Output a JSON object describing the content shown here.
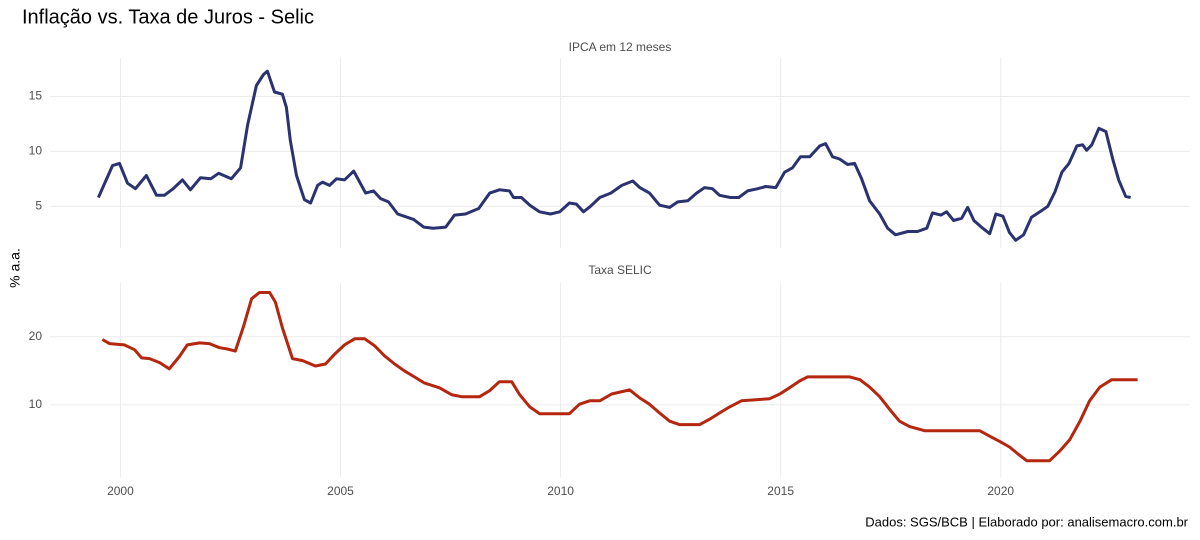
{
  "title": "Inflação vs. Taxa de Juros - Selic",
  "ylabel": "% a.a.",
  "caption": "Dados: SGS/BCB | Elaborado por: analisemacro.com.br",
  "chart_data": [
    {
      "type": "line",
      "title": "IPCA em 12 meses",
      "color": "#2b3270",
      "grid": true,
      "xlim": [
        1998.4,
        2024.3
      ],
      "ylim": [
        1.2,
        18.5
      ],
      "xticks": [
        2000,
        2005,
        2010,
        2015,
        2020
      ],
      "yticks": [
        5,
        10,
        15
      ],
      "x": [
        1999.5,
        1999.82,
        1999.98,
        2000.16,
        2000.34,
        2000.59,
        2000.82,
        2001.0,
        2001.2,
        2001.41,
        2001.59,
        2001.82,
        2002.05,
        2002.23,
        2002.52,
        2002.73,
        2002.89,
        2003.09,
        2003.25,
        2003.34,
        2003.5,
        2003.68,
        2003.77,
        2003.86,
        2004.0,
        2004.18,
        2004.32,
        2004.48,
        2004.59,
        2004.75,
        2004.91,
        2005.09,
        2005.3,
        2005.41,
        2005.57,
        2005.75,
        2005.91,
        2006.09,
        2006.3,
        2006.66,
        2006.89,
        2007.11,
        2007.39,
        2007.59,
        2007.84,
        2008.14,
        2008.39,
        2008.61,
        2008.84,
        2008.93,
        2009.11,
        2009.3,
        2009.52,
        2009.77,
        2009.98,
        2010.2,
        2010.36,
        2010.52,
        2010.68,
        2010.89,
        2011.14,
        2011.39,
        2011.64,
        2011.8,
        2012.02,
        2012.25,
        2012.48,
        2012.66,
        2012.89,
        2013.09,
        2013.27,
        2013.45,
        2013.61,
        2013.86,
        2014.05,
        2014.25,
        2014.48,
        2014.66,
        2014.89,
        2015.09,
        2015.27,
        2015.45,
        2015.66,
        2015.89,
        2016.02,
        2016.18,
        2016.34,
        2016.52,
        2016.68,
        2016.84,
        2017.02,
        2017.25,
        2017.43,
        2017.61,
        2017.89,
        2018.11,
        2018.32,
        2018.45,
        2018.64,
        2018.77,
        2018.93,
        2019.11,
        2019.25,
        2019.39,
        2019.59,
        2019.75,
        2019.89,
        2020.05,
        2020.2,
        2020.34,
        2020.52,
        2020.7,
        2020.89,
        2021.07,
        2021.23,
        2021.39,
        2021.55,
        2021.73,
        2021.86,
        2021.95,
        2022.07,
        2022.23,
        2022.39,
        2022.55,
        2022.68,
        2022.84,
        2022.95
      ],
      "values": [
        5.8,
        8.7,
        8.9,
        7.1,
        6.6,
        7.8,
        6.0,
        6.0,
        6.6,
        7.4,
        6.5,
        7.6,
        7.5,
        8.0,
        7.5,
        8.5,
        12.4,
        16.0,
        17.0,
        17.3,
        15.4,
        15.2,
        14.0,
        11.0,
        7.8,
        5.6,
        5.3,
        6.9,
        7.2,
        6.9,
        7.5,
        7.4,
        8.2,
        7.4,
        6.2,
        6.4,
        5.7,
        5.4,
        4.3,
        3.8,
        3.1,
        3.0,
        3.1,
        4.2,
        4.3,
        4.8,
        6.2,
        6.5,
        6.4,
        5.8,
        5.8,
        5.1,
        4.5,
        4.3,
        4.5,
        5.3,
        5.2,
        4.5,
        5.0,
        5.8,
        6.2,
        6.9,
        7.3,
        6.7,
        6.2,
        5.1,
        4.9,
        5.4,
        5.5,
        6.2,
        6.7,
        6.6,
        6.0,
        5.8,
        5.8,
        6.4,
        6.6,
        6.8,
        6.7,
        8.1,
        8.5,
        9.5,
        9.5,
        10.5,
        10.7,
        9.5,
        9.3,
        8.8,
        8.9,
        7.5,
        5.5,
        4.3,
        3.0,
        2.4,
        2.7,
        2.7,
        3.0,
        4.4,
        4.2,
        4.5,
        3.7,
        3.9,
        4.9,
        3.7,
        3.0,
        2.5,
        4.3,
        4.1,
        2.6,
        1.9,
        2.4,
        4.0,
        4.5,
        5.0,
        6.3,
        8.1,
        8.9,
        10.5,
        10.6,
        10.1,
        10.6,
        12.1,
        11.8,
        9.2,
        7.4,
        5.9,
        5.8
      ]
    },
    {
      "type": "line",
      "title": "Taxa SELIC",
      "color": "#b5260e",
      "grid": true,
      "xlim": [
        1998.4,
        2024.3
      ],
      "ylim": [
        -0.6,
        27.9
      ],
      "xticks": [
        2000,
        2005,
        2010,
        2015,
        2020
      ],
      "yticks": [
        10,
        20
      ],
      "x": [
        1999.59,
        1999.75,
        2000.09,
        2000.32,
        2000.48,
        2000.66,
        2000.89,
        2001.11,
        2001.34,
        2001.52,
        2001.8,
        2002.02,
        2002.25,
        2002.43,
        2002.61,
        2002.8,
        2002.98,
        2003.16,
        2003.39,
        2003.52,
        2003.68,
        2003.91,
        2004.14,
        2004.43,
        2004.66,
        2004.86,
        2005.09,
        2005.32,
        2005.55,
        2005.77,
        2006.0,
        2006.23,
        2006.45,
        2006.68,
        2006.91,
        2007.25,
        2007.52,
        2007.75,
        2008.16,
        2008.39,
        2008.61,
        2008.89,
        2009.07,
        2009.3,
        2009.52,
        2010.2,
        2010.43,
        2010.66,
        2010.89,
        2011.16,
        2011.57,
        2011.8,
        2012.02,
        2012.25,
        2012.48,
        2012.7,
        2013.16,
        2013.39,
        2013.61,
        2013.84,
        2014.11,
        2014.75,
        2014.98,
        2015.2,
        2015.43,
        2015.61,
        2016.57,
        2016.8,
        2017.02,
        2017.25,
        2017.48,
        2017.7,
        2017.93,
        2018.27,
        2019.52,
        2019.75,
        2019.98,
        2020.2,
        2020.39,
        2020.59,
        2021.11,
        2021.34,
        2021.57,
        2021.8,
        2022.02,
        2022.25,
        2022.52,
        2023.11
      ],
      "values": [
        19.6,
        19.0,
        18.8,
        18.1,
        16.9,
        16.8,
        16.2,
        15.3,
        17.1,
        18.8,
        19.1,
        19.0,
        18.4,
        18.2,
        17.9,
        21.6,
        25.6,
        26.5,
        26.5,
        25.1,
        21.3,
        16.8,
        16.5,
        15.7,
        16.0,
        17.4,
        18.8,
        19.7,
        19.7,
        18.7,
        17.2,
        16.0,
        15.0,
        14.1,
        13.2,
        12.5,
        11.5,
        11.2,
        11.2,
        12.1,
        13.4,
        13.4,
        11.5,
        9.7,
        8.7,
        8.7,
        10.1,
        10.6,
        10.6,
        11.6,
        12.2,
        11.0,
        10.1,
        8.8,
        7.6,
        7.1,
        7.1,
        7.9,
        8.8,
        9.7,
        10.6,
        10.9,
        11.6,
        12.5,
        13.5,
        14.1,
        14.1,
        13.7,
        12.6,
        11.2,
        9.3,
        7.6,
        6.8,
        6.2,
        6.2,
        5.4,
        4.6,
        3.8,
        2.8,
        1.8,
        1.8,
        3.2,
        4.9,
        7.6,
        10.6,
        12.6,
        13.7,
        13.7
      ]
    }
  ]
}
